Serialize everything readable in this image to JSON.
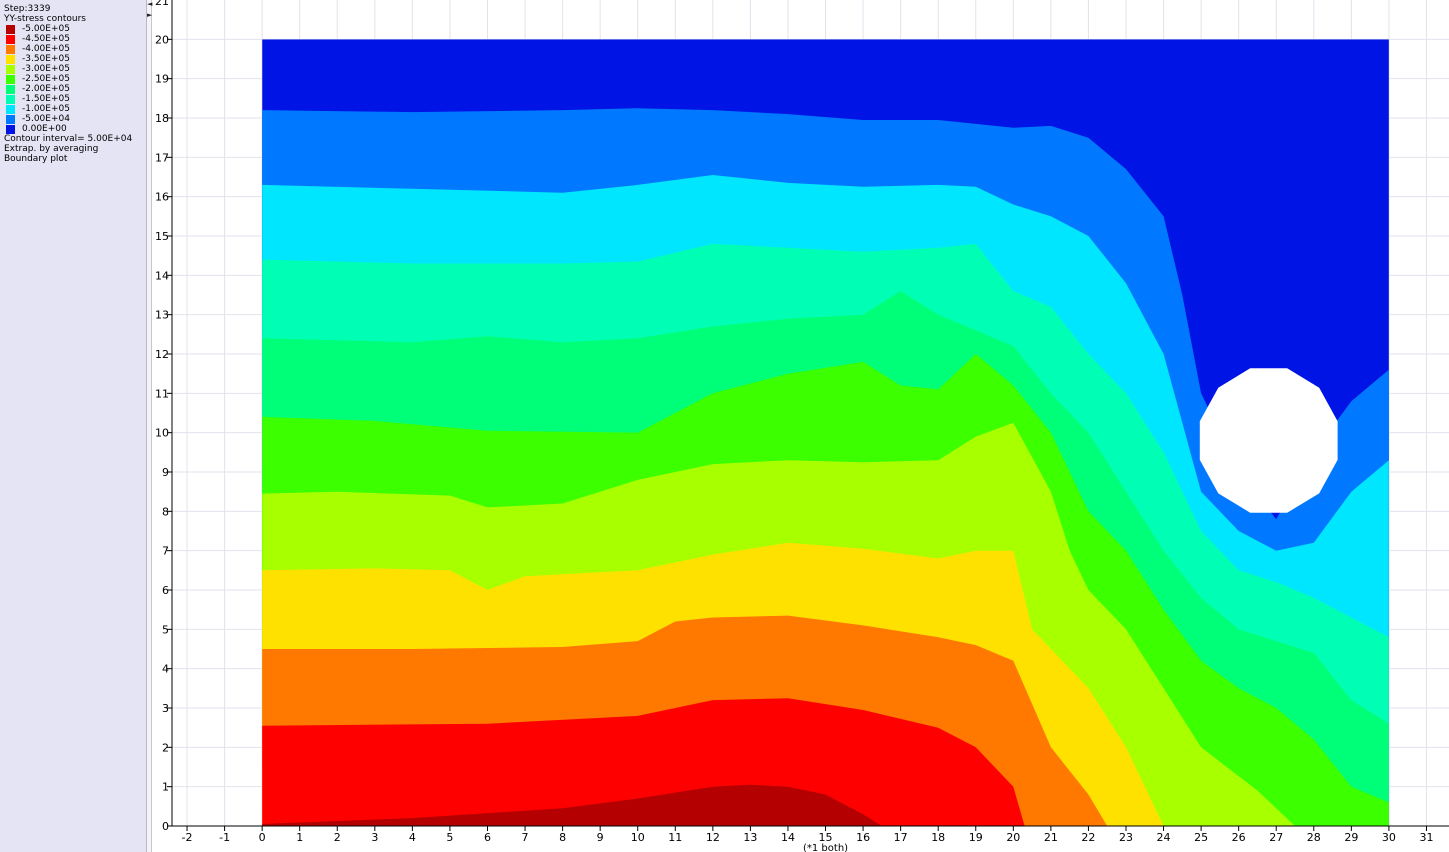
{
  "legend": {
    "step": "Step:3339",
    "title": "YY-stress contours",
    "levels": [
      {
        "label": "-5.00E+05",
        "color": "#b40000"
      },
      {
        "label": "-4.50E+05",
        "color": "#ff0000"
      },
      {
        "label": "-4.00E+05",
        "color": "#ff7800"
      },
      {
        "label": "-3.50E+05",
        "color": "#ffe100"
      },
      {
        "label": "-3.00E+05",
        "color": "#a8ff00"
      },
      {
        "label": "-2.50E+05",
        "color": "#3cff00"
      },
      {
        "label": "-2.00E+05",
        "color": "#00ff78"
      },
      {
        "label": "-1.50E+05",
        "color": "#00ffb4"
      },
      {
        "label": "-1.00E+05",
        "color": "#00e6ff"
      },
      {
        "label": "-5.00E+04",
        "color": "#0078ff"
      },
      {
        "label": "0.00E+00",
        "color": "#0014e6"
      }
    ],
    "interval": "Contour interval=  5.00E+04",
    "extrap": "Extrap. by averaging",
    "boundary": "Boundary plot"
  },
  "chart_data": {
    "type": "contour",
    "quantity": "YY-stress",
    "xlim": [
      -2.4,
      31.6
    ],
    "ylim": [
      0,
      21
    ],
    "domain": {
      "x": [
        0,
        30
      ],
      "y": [
        0,
        20
      ]
    },
    "x_ticks": [
      -2,
      -1,
      0,
      1,
      2,
      3,
      4,
      5,
      6,
      7,
      8,
      9,
      10,
      11,
      12,
      13,
      14,
      15,
      16,
      17,
      18,
      19,
      20,
      21,
      22,
      23,
      24,
      25,
      26,
      27,
      28,
      29,
      30,
      31
    ],
    "y_ticks": [
      0,
      1,
      2,
      3,
      4,
      5,
      6,
      7,
      8,
      9,
      10,
      11,
      12,
      13,
      14,
      15,
      16,
      17,
      18,
      19,
      20
    ],
    "x_label": "(*1 both)",
    "hole": {
      "cx": 26.8,
      "cy": 9.8,
      "r": 1.9,
      "sides": 12
    },
    "band_colors": [
      "#b40000",
      "#ff0000",
      "#ff7800",
      "#ffe100",
      "#a8ff00",
      "#3cff00",
      "#00ff78",
      "#00ffb4",
      "#00e6ff",
      "#0078ff",
      "#0014e6"
    ],
    "contours": [
      [
        [
          0,
          0.05
        ],
        [
          4,
          0.2
        ],
        [
          8,
          0.45
        ],
        [
          10,
          0.7
        ],
        [
          12,
          1.0
        ],
        [
          13,
          1.05
        ],
        [
          14,
          1.0
        ],
        [
          15,
          0.8
        ],
        [
          16,
          0.3
        ],
        [
          16.5,
          0
        ]
      ],
      [
        [
          0,
          2.55
        ],
        [
          6,
          2.6
        ],
        [
          10,
          2.8
        ],
        [
          12,
          3.2
        ],
        [
          14,
          3.25
        ],
        [
          16,
          2.95
        ],
        [
          18,
          2.5
        ],
        [
          19,
          2.0
        ],
        [
          20,
          1.0
        ],
        [
          20.3,
          0
        ]
      ],
      [
        [
          0,
          4.5
        ],
        [
          4,
          4.5
        ],
        [
          8,
          4.55
        ],
        [
          10,
          4.7
        ],
        [
          11,
          5.2
        ],
        [
          12,
          5.3
        ],
        [
          14,
          5.35
        ],
        [
          16,
          5.1
        ],
        [
          18,
          4.8
        ],
        [
          19,
          4.6
        ],
        [
          20,
          4.2
        ],
        [
          21,
          2.0
        ],
        [
          22,
          0.8
        ],
        [
          22.5,
          0
        ]
      ],
      [
        [
          0,
          6.5
        ],
        [
          3,
          6.55
        ],
        [
          5,
          6.5
        ],
        [
          6,
          6.0
        ],
        [
          7,
          6.35
        ],
        [
          10,
          6.5
        ],
        [
          12,
          6.9
        ],
        [
          14,
          7.2
        ],
        [
          16,
          7.05
        ],
        [
          18,
          6.8
        ],
        [
          19,
          7.0
        ],
        [
          20,
          7.0
        ],
        [
          20.5,
          5.0
        ],
        [
          21,
          4.5
        ],
        [
          22,
          3.5
        ],
        [
          23,
          2.0
        ],
        [
          24,
          0
        ]
      ],
      [
        [
          0,
          8.45
        ],
        [
          2,
          8.5
        ],
        [
          5,
          8.4
        ],
        [
          6,
          8.1
        ],
        [
          8,
          8.2
        ],
        [
          10,
          8.8
        ],
        [
          12,
          9.2
        ],
        [
          14,
          9.3
        ],
        [
          16,
          9.25
        ],
        [
          18,
          9.3
        ],
        [
          19,
          9.9
        ],
        [
          20,
          10.25
        ],
        [
          21,
          8.5
        ],
        [
          21.5,
          7.0
        ],
        [
          22,
          6.0
        ],
        [
          23,
          5.0
        ],
        [
          24,
          3.5
        ],
        [
          25,
          2.0
        ],
        [
          26.5,
          0.9
        ],
        [
          27.5,
          0
        ]
      ],
      [
        [
          0,
          10.4
        ],
        [
          3,
          10.3
        ],
        [
          6,
          10.05
        ],
        [
          10,
          10.0
        ],
        [
          12,
          11.0
        ],
        [
          14,
          11.5
        ],
        [
          16,
          11.8
        ],
        [
          17,
          11.2
        ],
        [
          18,
          11.1
        ],
        [
          19,
          12.0
        ],
        [
          20,
          11.2
        ],
        [
          21,
          10.0
        ],
        [
          22,
          8.0
        ],
        [
          23,
          7.0
        ],
        [
          24,
          5.5
        ],
        [
          25,
          4.2
        ],
        [
          26,
          3.5
        ],
        [
          27,
          3.0
        ],
        [
          28,
          2.2
        ],
        [
          29,
          1.0
        ],
        [
          30,
          0.6
        ]
      ],
      [
        [
          0,
          12.4
        ],
        [
          4,
          12.3
        ],
        [
          6,
          12.45
        ],
        [
          8,
          12.3
        ],
        [
          10,
          12.4
        ],
        [
          12,
          12.7
        ],
        [
          14,
          12.9
        ],
        [
          16,
          13.0
        ],
        [
          17,
          13.6
        ],
        [
          18,
          13.0
        ],
        [
          19,
          12.6
        ],
        [
          20,
          12.2
        ],
        [
          21,
          11.0
        ],
        [
          22,
          10.0
        ],
        [
          23,
          8.5
        ],
        [
          24,
          7.0
        ],
        [
          25,
          5.8
        ],
        [
          26,
          5.0
        ],
        [
          27,
          4.7
        ],
        [
          28,
          4.4
        ],
        [
          29,
          3.2
        ],
        [
          30,
          2.6
        ]
      ],
      [
        [
          0,
          14.4
        ],
        [
          4,
          14.3
        ],
        [
          8,
          14.3
        ],
        [
          10,
          14.35
        ],
        [
          12,
          14.8
        ],
        [
          14,
          14.7
        ],
        [
          16,
          14.6
        ],
        [
          18,
          14.7
        ],
        [
          19,
          14.8
        ],
        [
          20,
          13.6
        ],
        [
          21,
          13.2
        ],
        [
          22,
          12.0
        ],
        [
          23,
          11.0
        ],
        [
          24,
          9.5
        ],
        [
          25,
          7.5
        ],
        [
          26,
          6.5
        ],
        [
          27,
          6.2
        ],
        [
          28,
          5.8
        ],
        [
          29,
          5.3
        ],
        [
          30,
          4.8
        ]
      ],
      [
        [
          0,
          16.3
        ],
        [
          4,
          16.2
        ],
        [
          8,
          16.1
        ],
        [
          10,
          16.3
        ],
        [
          12,
          16.55
        ],
        [
          14,
          16.35
        ],
        [
          16,
          16.25
        ],
        [
          18,
          16.3
        ],
        [
          19,
          16.25
        ],
        [
          20,
          15.8
        ],
        [
          21,
          15.5
        ],
        [
          22,
          15.0
        ],
        [
          23,
          13.8
        ],
        [
          24,
          12.0
        ],
        [
          25,
          8.5
        ],
        [
          26,
          7.5
        ],
        [
          27,
          7.0
        ],
        [
          28,
          7.2
        ],
        [
          29,
          8.5
        ],
        [
          30,
          9.3
        ]
      ],
      [
        [
          0,
          18.2
        ],
        [
          4,
          18.15
        ],
        [
          8,
          18.2
        ],
        [
          10,
          18.25
        ],
        [
          12,
          18.2
        ],
        [
          14,
          18.1
        ],
        [
          16,
          17.95
        ],
        [
          18,
          17.95
        ],
        [
          20,
          17.75
        ],
        [
          21,
          17.8
        ],
        [
          22,
          17.5
        ],
        [
          23,
          16.7
        ],
        [
          24,
          15.5
        ],
        [
          24.5,
          13.5
        ],
        [
          25,
          11.0
        ],
        [
          26,
          9.0
        ],
        [
          27,
          7.8
        ],
        [
          28,
          9.5
        ],
        [
          29,
          10.8
        ],
        [
          30,
          11.6
        ]
      ]
    ]
  }
}
